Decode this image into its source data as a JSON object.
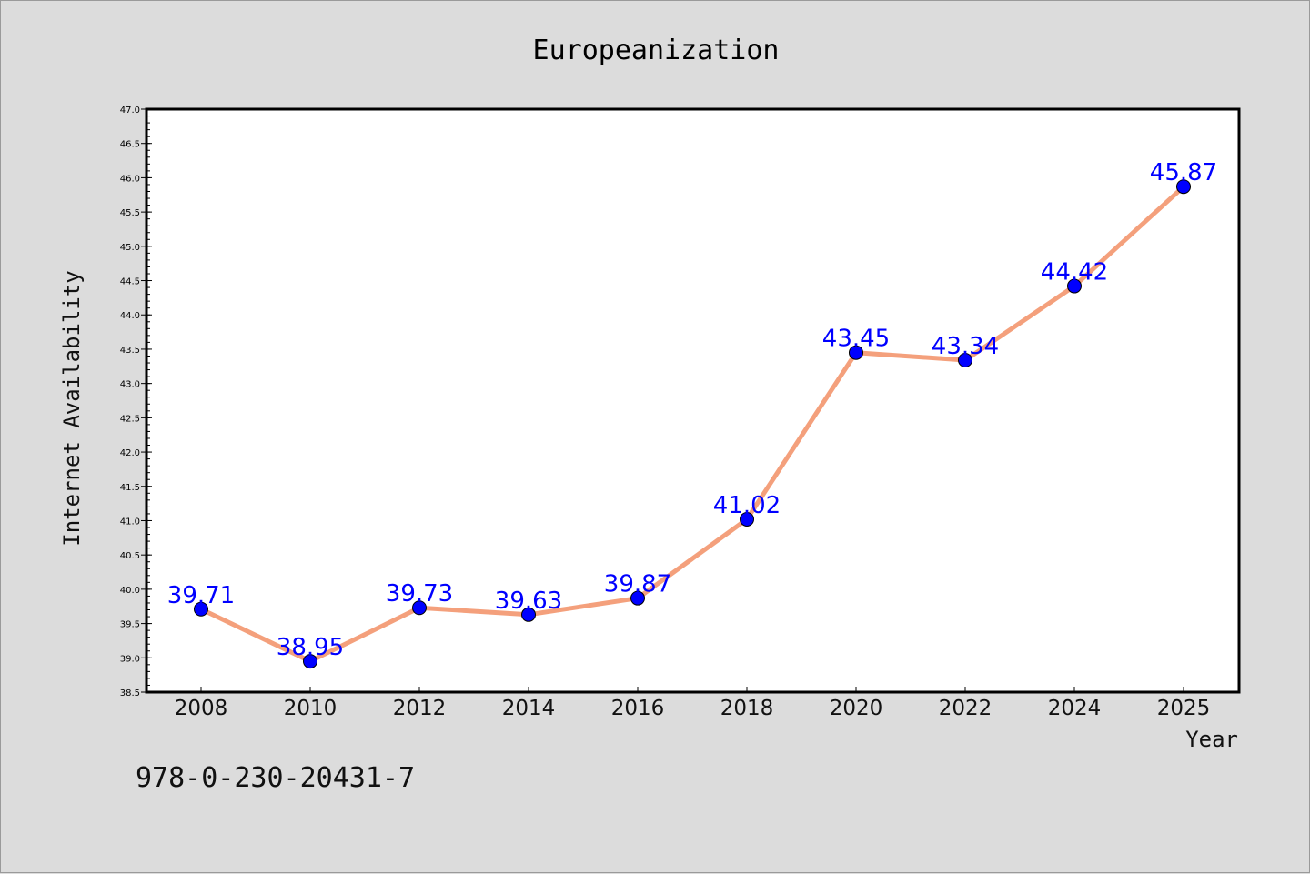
{
  "chart_data": {
    "type": "line",
    "title": "Europeanization",
    "xlabel": "Year",
    "ylabel": "Internet Availability",
    "categories": [
      "2008",
      "2010",
      "2012",
      "2014",
      "2016",
      "2018",
      "2020",
      "2022",
      "2024",
      "2025"
    ],
    "series": [
      {
        "values": [
          39.71,
          38.95,
          39.73,
          39.63,
          39.87,
          41.02,
          43.45,
          43.34,
          44.42,
          45.87
        ],
        "labels": [
          "39.71",
          "38.95",
          "39.73",
          "39.63",
          "39.87",
          "41.02",
          "43.45",
          "43.34",
          "44.42",
          "45.87"
        ],
        "line_color": "#f4a07c",
        "marker_color": "#0000ff"
      }
    ],
    "ylim": [
      38.5,
      47.0
    ],
    "yticks": [
      "38.5",
      "39.0",
      "39.5",
      "40.0",
      "40.5",
      "41.0",
      "41.5",
      "42.0",
      "42.5",
      "43.0",
      "43.5",
      "44.0",
      "44.5",
      "45.0",
      "45.5",
      "46.0",
      "46.5",
      "47.0"
    ],
    "grid": false,
    "legend": "none"
  },
  "footer": {
    "code": "978-0-230-20431-7"
  },
  "colors": {
    "background": "#dcdcdc",
    "plot_area": "#ffffff",
    "data_label": "#0000ff"
  }
}
